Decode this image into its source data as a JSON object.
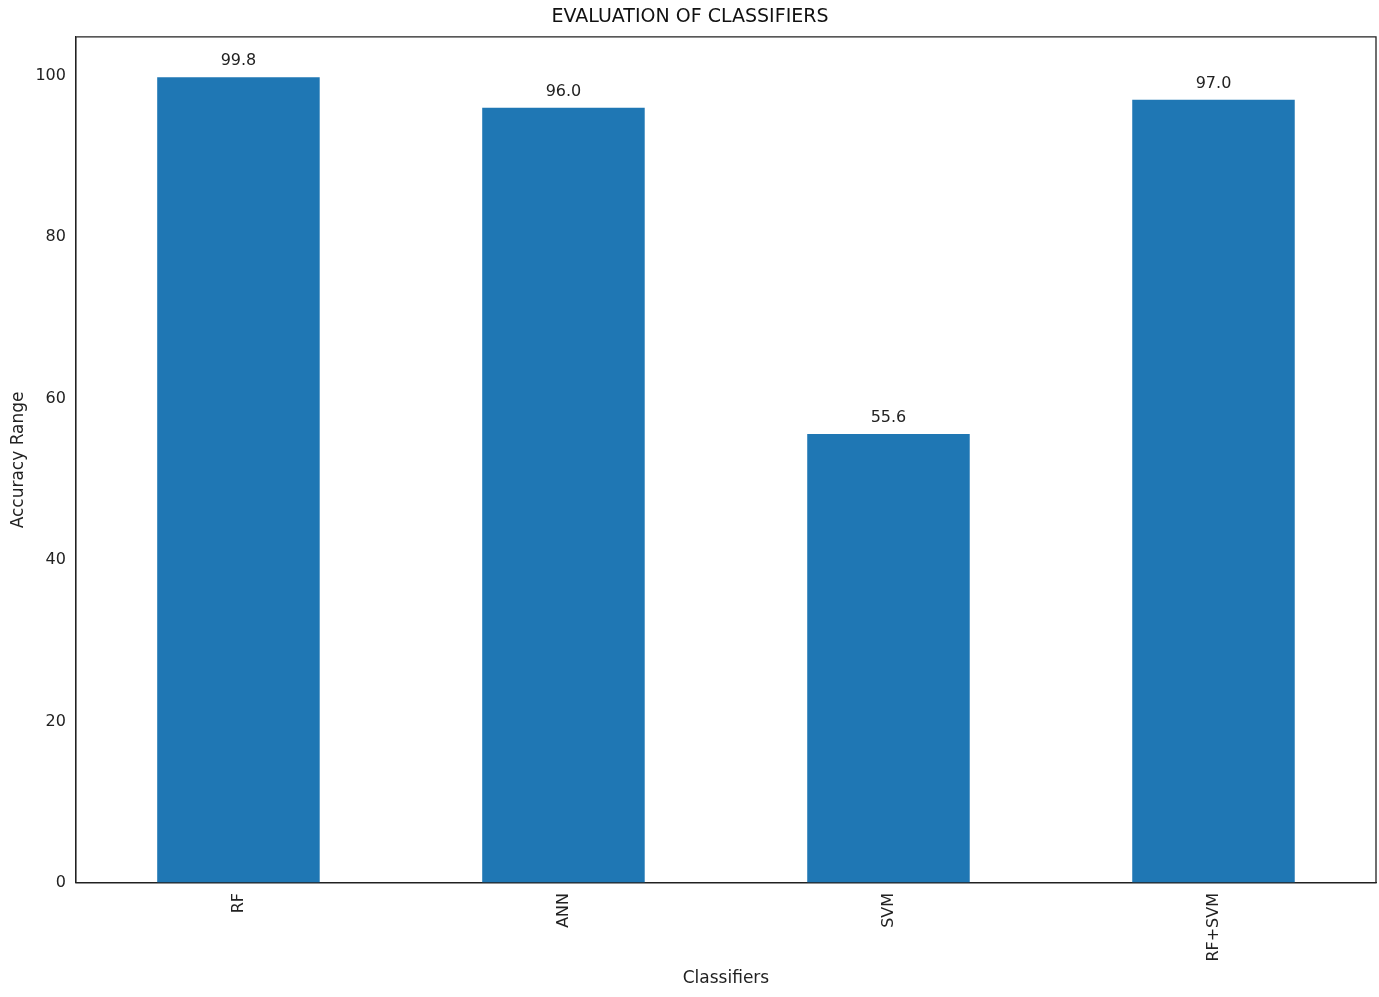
{
  "chart_data": {
    "type": "bar",
    "title": "EVALUATION OF CLASSIFIERS",
    "xlabel": "Classifiers",
    "ylabel": "Accuracy Range",
    "categories": [
      "RF",
      "ANN",
      "SVM",
      "RF+SVM"
    ],
    "values": [
      99.8,
      96.0,
      55.6,
      97.0
    ],
    "value_labels": [
      "99.8",
      "96.0",
      "55.6",
      "97.0"
    ],
    "color": "#1f77b4",
    "ylim": [
      0,
      104.8
    ],
    "yticks": [
      0,
      20,
      40,
      60,
      80,
      100
    ],
    "grid": false,
    "legend": false
  }
}
